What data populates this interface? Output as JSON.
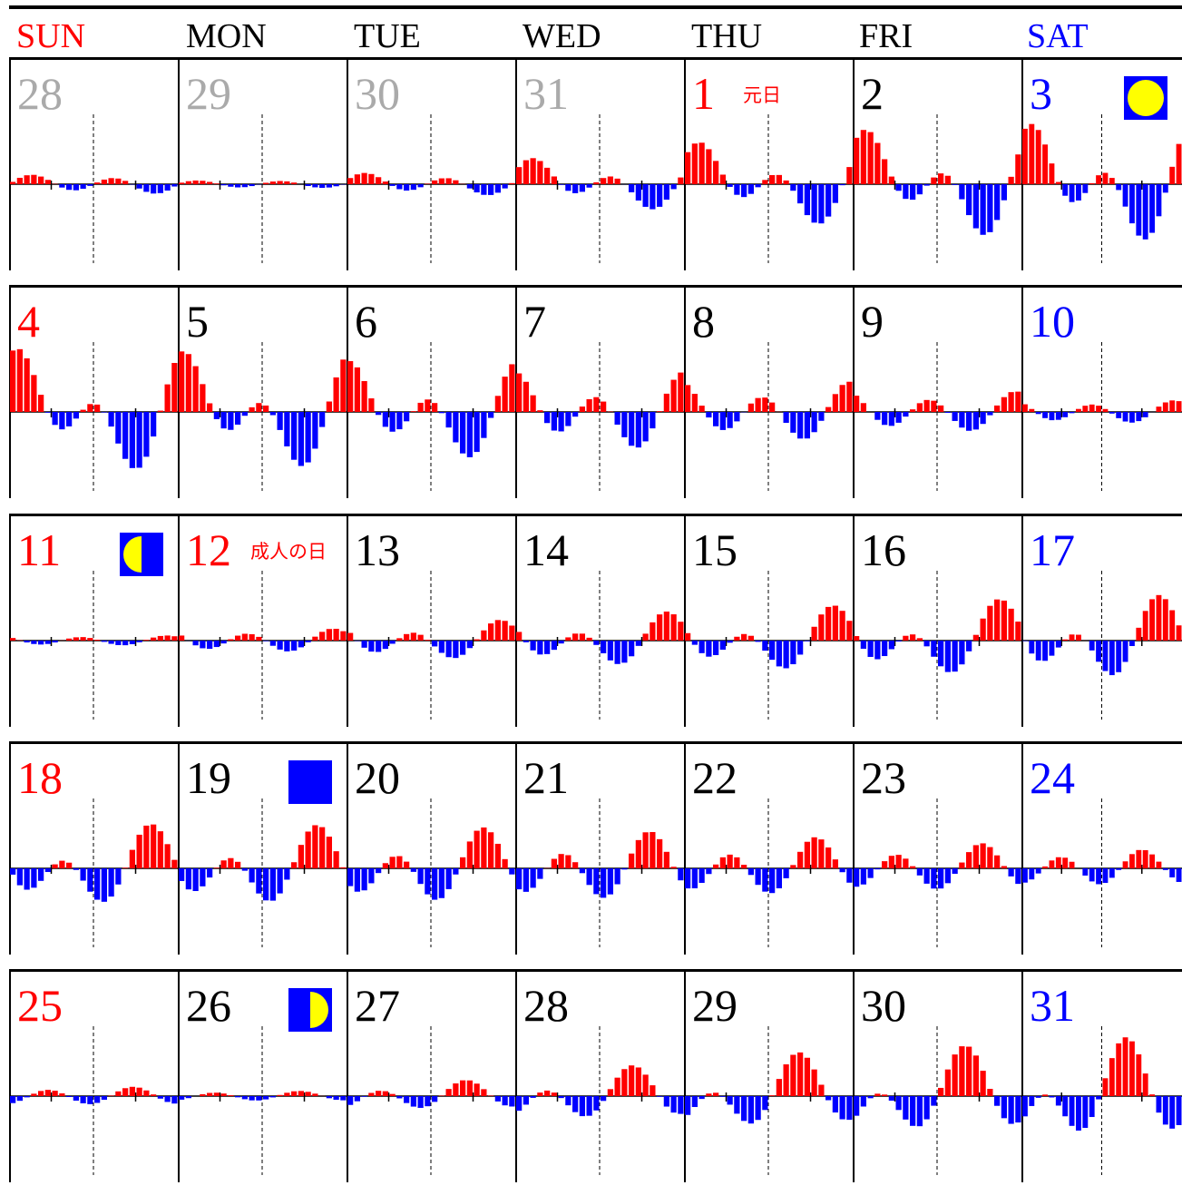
{
  "colors": {
    "sunday": "#ff0000",
    "saturday": "#0000ff",
    "weekday": "#000000",
    "other_month": "#aaaaaa",
    "rise": "#ff0000",
    "fall": "#0000ff",
    "moon_bg": "#0000ff",
    "moon_fg": "#ffff00",
    "grid": "#000000"
  },
  "weekdays": [
    "SUN",
    "MON",
    "TUE",
    "WED",
    "THU",
    "FRI",
    "SAT"
  ],
  "chart_data": {
    "type": "bar",
    "description_note": "",
    "weeks": [
      [
        {
          "day": "28",
          "kind": "other",
          "holiday": "",
          "moon": "",
          "amp": 0.18,
          "asym": 0.3
        },
        {
          "day": "29",
          "kind": "other",
          "holiday": "",
          "moon": "",
          "amp": 0.08,
          "asym": 0.1
        },
        {
          "day": "30",
          "kind": "other",
          "holiday": "",
          "moon": "",
          "amp": 0.2,
          "asym": 0.4
        },
        {
          "day": "31",
          "kind": "other",
          "holiday": "",
          "moon": "",
          "amp": 0.38,
          "asym": 0.75
        },
        {
          "day": "1",
          "kind": "holiday",
          "holiday": "元日",
          "moon": "",
          "amp": 0.58,
          "asym": 0.85
        },
        {
          "day": "2",
          "kind": "weekday",
          "holiday": "",
          "moon": "",
          "amp": 0.73,
          "asym": 0.9
        },
        {
          "day": "3",
          "kind": "saturday",
          "holiday": "",
          "moon": "full-moon",
          "amp": 0.8,
          "asym": 0.9
        }
      ],
      [
        {
          "day": "4",
          "kind": "sunday",
          "holiday": "",
          "moon": "",
          "amp": 0.8,
          "asym": 1.0
        },
        {
          "day": "5",
          "kind": "weekday",
          "holiday": "",
          "moon": "",
          "amp": 0.78,
          "asym": 0.95
        },
        {
          "day": "6",
          "kind": "weekday",
          "holiday": "",
          "moon": "",
          "amp": 0.72,
          "asym": 0.75
        },
        {
          "day": "7",
          "kind": "weekday",
          "holiday": "",
          "moon": "",
          "amp": 0.63,
          "asym": 0.55
        },
        {
          "day": "8",
          "kind": "weekday",
          "holiday": "",
          "moon": "",
          "amp": 0.52,
          "asym": 0.4
        },
        {
          "day": "9",
          "kind": "weekday",
          "holiday": "",
          "moon": "",
          "amp": 0.38,
          "asym": 0.3
        },
        {
          "day": "10",
          "kind": "saturday",
          "holiday": "",
          "moon": "",
          "amp": 0.22,
          "asym": 0.25
        }
      ],
      [
        {
          "day": "11",
          "kind": "sunday",
          "holiday": "",
          "moon": "last-quarter",
          "amp": 0.1,
          "asym": 0.2
        },
        {
          "day": "12",
          "kind": "holiday",
          "holiday": "成人の日",
          "moon": "",
          "amp": 0.22,
          "asym": 0.3
        },
        {
          "day": "13",
          "kind": "weekday",
          "holiday": "",
          "moon": "",
          "amp": 0.33,
          "asym": 0.5
        },
        {
          "day": "14",
          "kind": "weekday",
          "holiday": "",
          "moon": "",
          "amp": 0.42,
          "asym": 0.65
        },
        {
          "day": "15",
          "kind": "weekday",
          "holiday": "",
          "moon": "",
          "amp": 0.48,
          "asym": 0.75
        },
        {
          "day": "16",
          "kind": "weekday",
          "holiday": "",
          "moon": "",
          "amp": 0.55,
          "asym": 0.8
        },
        {
          "day": "17",
          "kind": "saturday",
          "holiday": "",
          "moon": "",
          "amp": 0.6,
          "asym": 0.8
        }
      ],
      [
        {
          "day": "18",
          "kind": "sunday",
          "holiday": "",
          "moon": "",
          "amp": 0.6,
          "asym": 0.75
        },
        {
          "day": "19",
          "kind": "weekday",
          "holiday": "",
          "moon": "new-moon",
          "amp": 0.62,
          "asym": 0.65
        },
        {
          "day": "20",
          "kind": "weekday",
          "holiday": "",
          "moon": "",
          "amp": 0.62,
          "asym": 0.55
        },
        {
          "day": "21",
          "kind": "weekday",
          "holiday": "",
          "moon": "",
          "amp": 0.6,
          "asym": 0.45
        },
        {
          "day": "22",
          "kind": "weekday",
          "holiday": "",
          "moon": "",
          "amp": 0.52,
          "asym": 0.4
        },
        {
          "day": "23",
          "kind": "weekday",
          "holiday": "",
          "moon": "",
          "amp": 0.45,
          "asym": 0.3
        },
        {
          "day": "24",
          "kind": "saturday",
          "holiday": "",
          "moon": "",
          "amp": 0.35,
          "asym": 0.25
        }
      ],
      [
        {
          "day": "25",
          "kind": "sunday",
          "holiday": "",
          "moon": "",
          "amp": 0.18,
          "asym": 0.2
        },
        {
          "day": "26",
          "kind": "weekday",
          "holiday": "",
          "moon": "first-quarter",
          "amp": 0.1,
          "asym": 0.2
        },
        {
          "day": "27",
          "kind": "weekday",
          "holiday": "",
          "moon": "",
          "amp": 0.25,
          "asym": 0.5
        },
        {
          "day": "28",
          "kind": "weekday",
          "holiday": "",
          "moon": "",
          "amp": 0.42,
          "asym": 0.7
        },
        {
          "day": "29",
          "kind": "weekday",
          "holiday": "",
          "moon": "",
          "amp": 0.55,
          "asym": 0.85
        },
        {
          "day": "30",
          "kind": "weekday",
          "holiday": "",
          "moon": "",
          "amp": 0.62,
          "asym": 0.9
        },
        {
          "day": "31",
          "kind": "saturday",
          "holiday": "",
          "moon": "",
          "amp": 0.7,
          "asym": 0.95
        }
      ]
    ]
  }
}
